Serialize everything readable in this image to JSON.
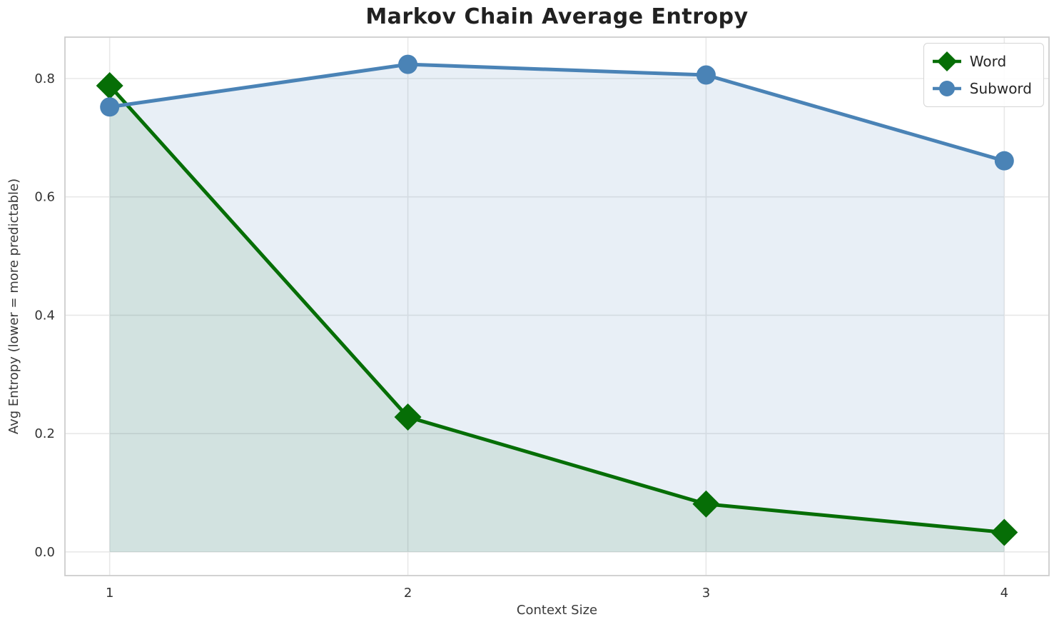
{
  "chart_data": {
    "type": "line",
    "title": "Markov Chain Average Entropy",
    "xlabel": "Context Size",
    "ylabel": "Avg Entropy (lower = more predictable)",
    "x": [
      1,
      2,
      3,
      4
    ],
    "series": [
      {
        "name": "Word",
        "marker": "diamond",
        "color": "#066e06",
        "fill_opacity": 0.1,
        "values": [
          0.788,
          0.228,
          0.081,
          0.033
        ]
      },
      {
        "name": "Subword",
        "marker": "circle",
        "color": "#4a83b6",
        "fill_opacity": 0.13,
        "values": [
          0.752,
          0.824,
          0.806,
          0.661
        ]
      }
    ],
    "xticks": [
      1,
      2,
      3,
      4
    ],
    "yticks": [
      0.0,
      0.2,
      0.4,
      0.6,
      0.8
    ],
    "xlim": [
      0.85,
      4.15
    ],
    "ylim": [
      -0.04,
      0.87
    ],
    "grid": true,
    "area_fill_baseline": 0,
    "legend_position": "upper right"
  },
  "style": {
    "grid_color": "#e8e8e8",
    "border_color": "#cdcdcd",
    "tick_color": "#333333"
  }
}
